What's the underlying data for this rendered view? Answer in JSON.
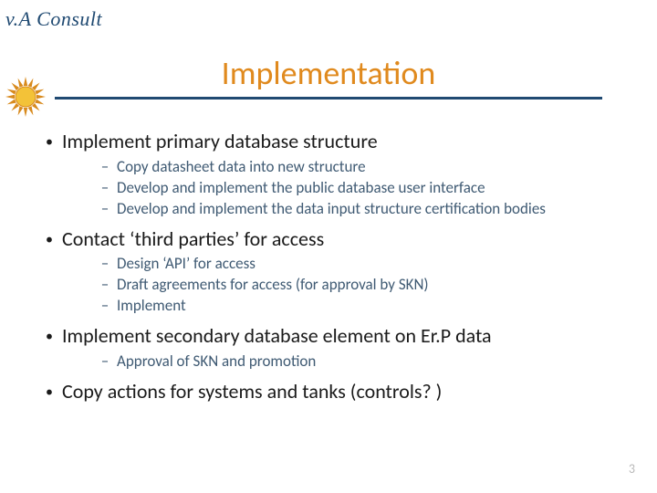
{
  "logo_text": "v.A Consult",
  "title": "Implementation",
  "title_color": "#e08a1e",
  "underline_color": "#204a72",
  "bullet_color_l1": "#1a1a1a",
  "text_color_l2": "#3f5a73",
  "page_number": "3",
  "bullets": [
    {
      "text": "Implement primary database structure",
      "sub": [
        "Copy datasheet data into new structure",
        "Develop and implement the public database user interface",
        "Develop and implement the data input structure certification bodies"
      ]
    },
    {
      "text": "Contact ‘third parties’ for access",
      "sub": [
        "Design ‘API’ for access",
        "Draft agreements for access (for approval by SKN)",
        "Implement"
      ]
    },
    {
      "text": "Implement secondary database element on Er.P data",
      "sub": [
        "Approval of SKN and promotion"
      ]
    },
    {
      "text": "Copy actions for systems and tanks (controls? )",
      "sub": []
    }
  ],
  "sun": {
    "center_color": "#f3c238",
    "ray_color": "#d88a1c"
  }
}
